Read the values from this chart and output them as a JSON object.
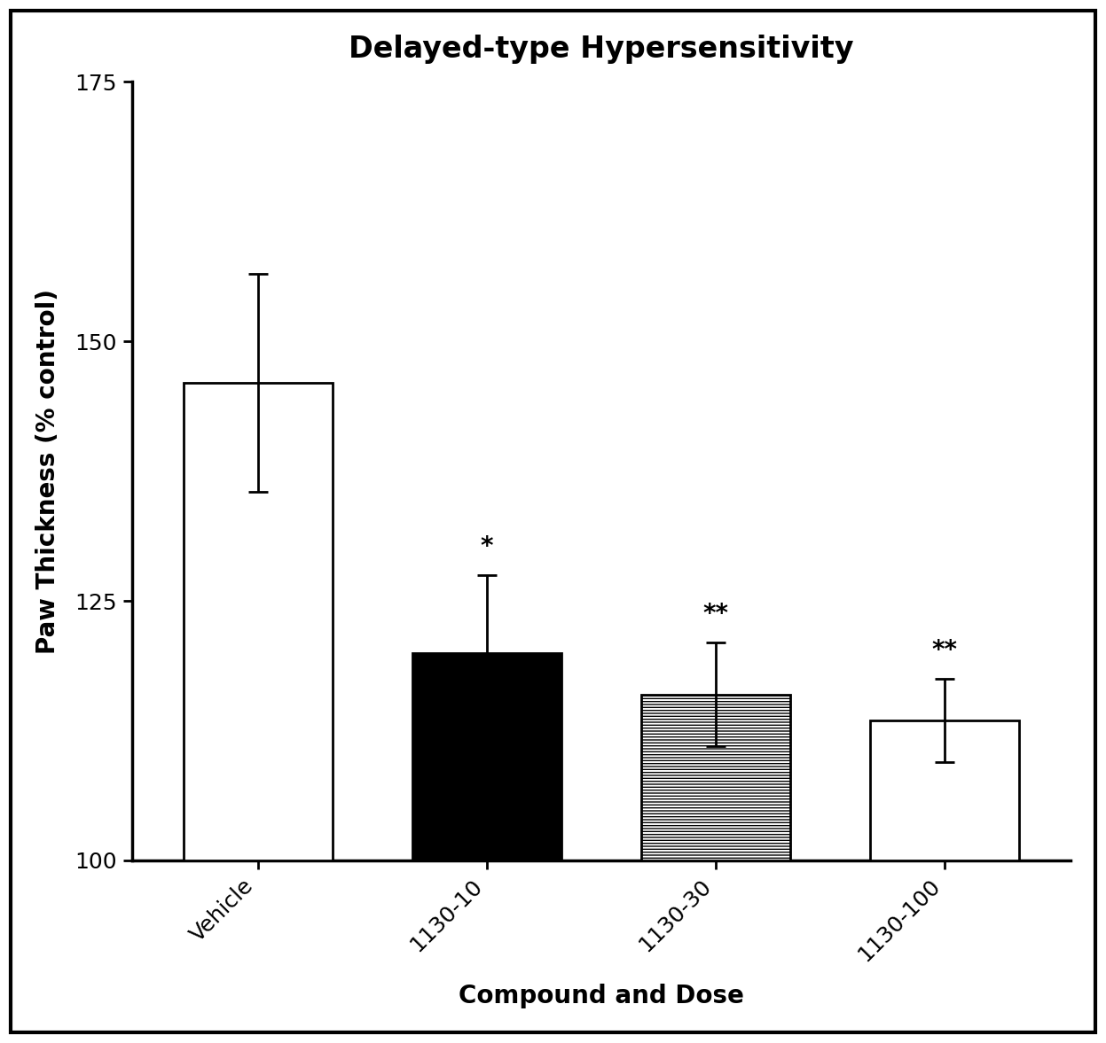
{
  "title": "Delayed-type Hypersensitivity",
  "xlabel": "Compound and Dose",
  "ylabel": "Paw Thickness (% control)",
  "categories": [
    "Vehicle",
    "1130-10",
    "1130-30",
    "1130-100"
  ],
  "values": [
    146.0,
    120.0,
    116.0,
    113.5
  ],
  "errors": [
    10.5,
    7.5,
    5.0,
    4.0
  ],
  "significance": [
    "",
    "*",
    "**",
    "**"
  ],
  "ylim": [
    100,
    175
  ],
  "yticks": [
    100,
    125,
    150,
    175
  ],
  "bar_colors": [
    "#ffffff",
    "#000000",
    "#ffffff",
    "#ffffff"
  ],
  "bar_edgecolors": [
    "#000000",
    "#000000",
    "#000000",
    "#000000"
  ],
  "hatch_patterns": [
    "",
    "",
    "-----",
    ""
  ],
  "title_fontsize": 24,
  "label_fontsize": 20,
  "tick_fontsize": 18,
  "sig_fontsize": 20,
  "xtick_fontsize": 18,
  "background_color": "#ffffff",
  "bar_width": 0.65,
  "figure_border_color": "#000000",
  "spine_linewidth": 2.5,
  "errorbar_linewidth": 2.0,
  "capsize": 8,
  "capthick": 2.0
}
